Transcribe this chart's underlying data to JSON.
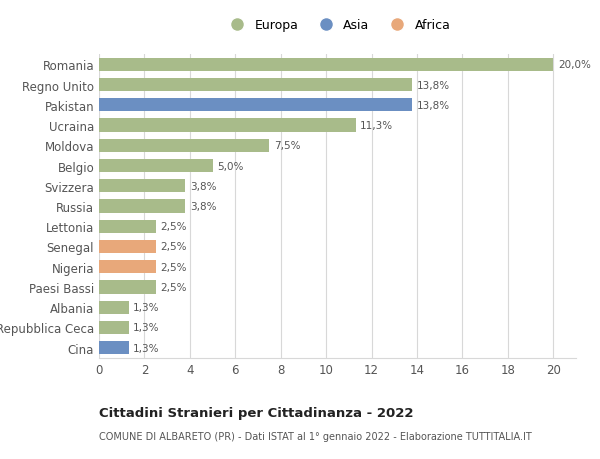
{
  "categories": [
    "Cina",
    "Repubblica Ceca",
    "Albania",
    "Paesi Bassi",
    "Nigeria",
    "Senegal",
    "Lettonia",
    "Russia",
    "Svizzera",
    "Belgio",
    "Moldova",
    "Ucraina",
    "Pakistan",
    "Regno Unito",
    "Romania"
  ],
  "values": [
    1.3,
    1.3,
    1.3,
    2.5,
    2.5,
    2.5,
    2.5,
    3.8,
    3.8,
    5.0,
    7.5,
    11.3,
    13.8,
    13.8,
    20.0
  ],
  "colors": [
    "#6b8fc2",
    "#a8bb8a",
    "#a8bb8a",
    "#a8bb8a",
    "#e8a87a",
    "#e8a87a",
    "#a8bb8a",
    "#a8bb8a",
    "#a8bb8a",
    "#a8bb8a",
    "#a8bb8a",
    "#a8bb8a",
    "#6b8fc2",
    "#a8bb8a",
    "#a8bb8a"
  ],
  "labels": [
    "1,3%",
    "1,3%",
    "1,3%",
    "2,5%",
    "2,5%",
    "2,5%",
    "2,5%",
    "3,8%",
    "3,8%",
    "5,0%",
    "7,5%",
    "11,3%",
    "13,8%",
    "13,8%",
    "20,0%"
  ],
  "legend": [
    {
      "label": "Europa",
      "color": "#a8bb8a"
    },
    {
      "label": "Asia",
      "color": "#6b8fc2"
    },
    {
      "label": "Africa",
      "color": "#e8a87a"
    }
  ],
  "xlim": [
    0,
    21
  ],
  "xticks": [
    0,
    2,
    4,
    6,
    8,
    10,
    12,
    14,
    16,
    18,
    20
  ],
  "title": "Cittadini Stranieri per Cittadinanza - 2022",
  "subtitle": "COMUNE DI ALBARETO (PR) - Dati ISTAT al 1° gennaio 2022 - Elaborazione TUTTITALIA.IT",
  "background_color": "#ffffff",
  "grid_color": "#d8d8d8",
  "bar_height": 0.65
}
